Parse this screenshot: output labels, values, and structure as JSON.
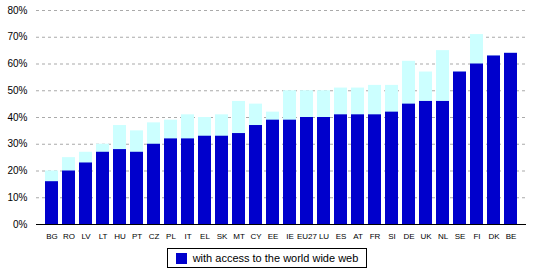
{
  "chart_data": {
    "type": "bar",
    "categories": [
      "BG",
      "RO",
      "LV",
      "LT",
      "HU",
      "PT",
      "CZ",
      "PL",
      "IT",
      "EL",
      "SK",
      "MT",
      "CY",
      "EE",
      "IE",
      "EU27",
      "LU",
      "ES",
      "AT",
      "FR",
      "SI",
      "DE",
      "UK",
      "NL",
      "SE",
      "FI",
      "DK",
      "BE"
    ],
    "series": [
      {
        "color": "#CCFFFF",
        "values": [
          20,
          25,
          27,
          30,
          37,
          35,
          38,
          39,
          41,
          40,
          41,
          46,
          45,
          42,
          50,
          50,
          50,
          51,
          51,
          52,
          52,
          61,
          57,
          65,
          57,
          71,
          63,
          64
        ]
      },
      {
        "name": "with access to the world wide web",
        "color": "#0000CC",
        "values": [
          16,
          20,
          23,
          27,
          28,
          27,
          30,
          32,
          32,
          33,
          33,
          34,
          37,
          39,
          39,
          40,
          40,
          41,
          41,
          41,
          42,
          45,
          46,
          46,
          57,
          60,
          63,
          64
        ]
      }
    ],
    "stacked": false,
    "ylim": [
      0,
      80
    ],
    "yticks": [
      {
        "value": 0,
        "label": "0%"
      },
      {
        "value": 10,
        "label": "10%"
      },
      {
        "value": 20,
        "label": "20%"
      },
      {
        "value": 30,
        "label": "30%"
      },
      {
        "value": 40,
        "label": "40%"
      },
      {
        "value": 50,
        "label": "50%"
      },
      {
        "value": 60,
        "label": "60%"
      },
      {
        "value": 70,
        "label": "70%"
      },
      {
        "value": 80,
        "label": "80%"
      }
    ],
    "grid": true,
    "legend": "bottom"
  }
}
